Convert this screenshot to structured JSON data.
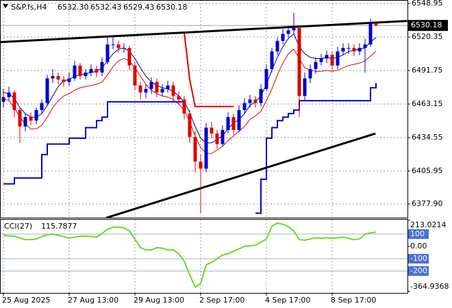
{
  "chart_data": {
    "type": "candlestick",
    "symbol": "S&P.fs,H4",
    "header_labels": [
      "6532.30",
      "6532.43",
      "6529.43",
      "6530.18"
    ],
    "x": [
      "25 Aug 2025",
      null,
      null,
      null,
      null,
      null,
      null,
      null,
      null,
      null,
      null,
      null,
      "27 Aug 13:00",
      null,
      null,
      null,
      null,
      null,
      null,
      null,
      null,
      null,
      null,
      null,
      "29 Aug 13:00",
      null,
      null,
      null,
      null,
      null,
      null,
      null,
      null,
      null,
      null,
      null,
      "2 Sep 17:00",
      null,
      null,
      null,
      null,
      null,
      null,
      null,
      null,
      null,
      null,
      null,
      "4 Sep 17:00",
      null,
      null,
      null,
      null,
      null,
      null,
      null,
      null,
      null,
      null,
      null,
      "8 Sep 17:00",
      null,
      null,
      null,
      null,
      null,
      null,
      null,
      null
    ],
    "open": [
      6465,
      6469,
      6473,
      6458,
      6444,
      6452,
      6449,
      6458,
      6464,
      6485,
      6487,
      6484,
      6482,
      6485,
      6496,
      6487,
      6490,
      6493,
      6490,
      6499,
      6514,
      6514,
      6511,
      6511,
      6496,
      6479,
      6473,
      6476,
      6482,
      6473,
      6476,
      6479,
      6470,
      6467,
      6455,
      6435,
      6414,
      6408,
      6443,
      6438,
      6429,
      6441,
      6452,
      6441,
      6458,
      6464,
      6467,
      6464,
      6476,
      6493,
      6508,
      6517,
      6523,
      6526,
      6528,
      6470,
      6485,
      6493,
      6499,
      6502,
      6505,
      6496,
      6508,
      6511,
      6511,
      6508,
      6511,
      6514,
      6532.3
    ],
    "high": [
      6476,
      6478,
      6475,
      6460,
      6455,
      6456,
      6460,
      6467,
      6488,
      6493,
      6490,
      6487,
      6490,
      6500,
      6498,
      6493,
      6497,
      6496,
      6503,
      6520,
      6521,
      6517,
      6515,
      6513,
      6499,
      6482,
      6480,
      6486,
      6485,
      6480,
      6483,
      6482,
      6474,
      6470,
      6458,
      6440,
      6420,
      6447,
      6448,
      6441,
      6445,
      6456,
      6455,
      6462,
      6468,
      6471,
      6470,
      6480,
      6497,
      6511,
      6520,
      6527,
      6530,
      6541,
      6530,
      6490,
      6497,
      6503,
      6506,
      6509,
      6508,
      6512,
      6515,
      6515,
      6514,
      6515,
      6519,
      6536,
      6532.43
    ],
    "low": [
      6460,
      6466,
      6452,
      6430,
      6440,
      6445,
      6446,
      6455,
      6462,
      6481,
      6480,
      6478,
      6479,
      6483,
      6484,
      6484,
      6487,
      6486,
      6487,
      6497,
      6510,
      6507,
      6507,
      6492,
      6475,
      6467,
      6468,
      6472,
      6469,
      6470,
      6473,
      6466,
      6463,
      6450,
      6430,
      6405,
      6370,
      6405,
      6434,
      6425,
      6427,
      6438,
      6437,
      6439,
      6455,
      6460,
      6460,
      6461,
      6474,
      6490,
      6505,
      6514,
      6520,
      6522,
      6452,
      6466,
      6481,
      6489,
      6496,
      6498,
      6492,
      6493,
      6505,
      6506,
      6504,
      6505,
      6490,
      6512,
      6529.43
    ],
    "close": [
      6469,
      6473,
      6458,
      6444,
      6452,
      6449,
      6458,
      6464,
      6485,
      6487,
      6484,
      6482,
      6485,
      6496,
      6487,
      6490,
      6493,
      6490,
      6499,
      6514,
      6514,
      6511,
      6511,
      6496,
      6479,
      6473,
      6476,
      6482,
      6473,
      6476,
      6479,
      6470,
      6467,
      6455,
      6435,
      6414,
      6408,
      6443,
      6438,
      6429,
      6441,
      6452,
      6441,
      6458,
      6464,
      6467,
      6464,
      6476,
      6493,
      6508,
      6517,
      6523,
      6526,
      6528,
      6470,
      6485,
      6493,
      6499,
      6502,
      6505,
      6496,
      6508,
      6511,
      6511,
      6508,
      6511,
      6514,
      6532.3,
      6530.18
    ],
    "up_color": "#0000cc",
    "down_color": "#e00000",
    "series": [
      {
        "color": "#000080",
        "width": 1,
        "step": false,
        "values": [
          6473,
          6472,
          6468,
          6460,
          6455,
          6452,
          6452,
          6455,
          6462,
          6470,
          6478,
          6483,
          6484,
          6487,
          6488,
          6489,
          6490,
          6491,
          6494,
          6500,
          6506,
          6510,
          6511,
          6508,
          6502,
          6494,
          6487,
          6482,
          6479,
          6477,
          6476,
          6474,
          6470,
          6465,
          6456,
          6444,
          6434,
          6430,
          6430,
          6433,
          6436,
          6442,
          6447,
          6450,
          6455,
          6462,
          6465,
          6470,
          6480,
          6492,
          6503,
          6512,
          6519,
          6523,
          6512,
          6506,
          6503,
          6502,
          6502,
          6503,
          6502,
          6503,
          6505,
          6508,
          6509,
          6510,
          6511,
          6516,
          6520
        ]
      },
      {
        "color": "#e00000",
        "width": 1,
        "step": false,
        "values": [
          6468,
          6466,
          6460,
          6452,
          6446,
          6442,
          6442,
          6445,
          6452,
          6460,
          6466,
          6470,
          6472,
          6475,
          6477,
          6478,
          6479,
          6480,
          6482,
          6488,
          6495,
          6500,
          6502,
          6500,
          6494,
          6487,
          6480,
          6475,
          6472,
          6470,
          6469,
          6467,
          6463,
          6458,
          6448,
          6436,
          6426,
          6421,
          6421,
          6424,
          6427,
          6432,
          6436,
          6440,
          6444,
          6450,
          6453,
          6457,
          6466,
          6476,
          6488,
          6498,
          6506,
          6510,
          6502,
          6494,
          6492,
          6491,
          6491,
          6492,
          6491,
          6492,
          6494,
          6496,
          6497,
          6498,
          6500,
          6504,
          6508
        ]
      },
      {
        "color": "#0000cc",
        "width": 2,
        "step": true,
        "values": [
          6395,
          6395,
          6400,
          6400,
          6400,
          6400,
          6400,
          6420,
          6429,
          6429,
          6429,
          6429,
          6434,
          6434,
          6434,
          6443,
          6443,
          6449,
          6452,
          6465,
          6465,
          6465,
          6465,
          6465,
          6465,
          6465,
          6465,
          6465,
          6465,
          6465,
          6465,
          6465,
          6465,
          6465,
          null,
          null,
          null,
          null,
          null,
          null,
          null,
          null,
          null,
          null,
          null,
          null,
          6370,
          6399,
          6434,
          6443,
          6449,
          6452,
          6455,
          6458,
          6466,
          6466,
          6466,
          6466,
          6466,
          6466,
          6466,
          6466,
          6466,
          6466,
          6466,
          6466,
          6466,
          6477,
          6481
        ]
      },
      {
        "color": "#e00000",
        "width": 2,
        "step": false,
        "values": [
          null,
          null,
          null,
          null,
          null,
          null,
          null,
          null,
          null,
          null,
          null,
          null,
          null,
          null,
          null,
          null,
          null,
          null,
          null,
          null,
          null,
          null,
          null,
          null,
          null,
          null,
          null,
          null,
          null,
          null,
          null,
          null,
          null,
          6524,
          6484,
          6461,
          6461,
          6461,
          6461,
          6461,
          6461,
          6461,
          6461,
          null,
          null,
          null,
          null,
          null,
          null,
          null,
          null,
          null,
          null,
          null,
          null,
          null,
          null,
          null,
          null,
          null,
          null,
          null,
          null,
          null,
          null,
          null,
          null,
          null,
          null
        ]
      }
    ],
    "trendlines": [
      {
        "color": "#000000",
        "x": [
          -0.6,
          73.7
        ],
        "values": [
          6516,
          6534
        ]
      },
      {
        "color": "#000000",
        "x": [
          18.75,
          67.9
        ],
        "values": [
          6366,
          6438
        ]
      }
    ],
    "price_tag": {
      "value": 6530.18,
      "label": "6530.18"
    },
    "ylim": [
      6366.2,
      6551.9
    ],
    "yticks": [
      6548.95,
      6520.35,
      6491.75,
      6463.15,
      6434.55,
      6405.95,
      {
        "value": 6377.9,
        "label": "6377.90"
      }
    ],
    "grid": true,
    "cci": {
      "name": "CCI(27)",
      "last_label": "115.7877",
      "color": "#66dd22",
      "level_color": "#4a70d8",
      "levels": [
        100,
        -100,
        -200
      ],
      "ylim": [
        -377.8,
        216.7
      ],
      "yticks": [
        213.0214,
        100,
        {
          "value": 0,
          "label": "0.00"
        },
        -100,
        -200,
        -364.9368
      ],
      "values": [
        89,
        85,
        83,
        70,
        55,
        55,
        60,
        80,
        95,
        100,
        90,
        80,
        67,
        75,
        82,
        85,
        80,
        75,
        105,
        140,
        155,
        158,
        150,
        125,
        60,
        -10,
        -28,
        -28,
        -10,
        -15,
        -30,
        -28,
        -60,
        -120,
        -230,
        -330,
        -300,
        -150,
        -130,
        -100,
        -70,
        -60,
        -40,
        -20,
        0,
        5,
        10,
        35,
        60,
        165,
        189,
        180,
        160,
        125,
        55,
        50,
        60,
        70,
        65,
        70,
        65,
        70,
        75,
        65,
        55,
        60,
        100,
        110,
        115.7877
      ]
    }
  }
}
